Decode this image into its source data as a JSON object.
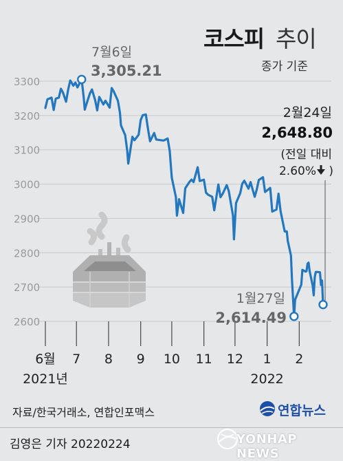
{
  "header": {
    "title": "코스피",
    "title_suffix": "추이",
    "subtitle": "종가 기준"
  },
  "footer": {
    "source": "자료/한국거래소, 연합인포맥스",
    "byline": "김영은 기자  20220224",
    "logo_yonhap": "연합뉴스",
    "logo_news": "YONHAP NEWS"
  },
  "colors": {
    "line": "#2377bf",
    "background": "#e6e7e8",
    "grid": "#c8c9cb",
    "tick_text": "#9a9a9a"
  },
  "icons": {
    "illustration": "incense-burner-icon",
    "logo": "yonhap-globe-icon"
  },
  "chart_data": {
    "type": "line",
    "title": "코스피 추이",
    "subtitle": "종가 기준",
    "x_range": [
      "2021-06-01",
      "2022-02-24"
    ],
    "ylim": [
      2600,
      3300
    ],
    "yticks": [
      2600,
      2700,
      2800,
      2900,
      3000,
      3100,
      3200,
      3300
    ],
    "grid": true,
    "xticks": [
      {
        "date": "2021-06-01",
        "label": "6월",
        "year": "2021년"
      },
      {
        "date": "2021-07-01",
        "label": "7"
      },
      {
        "date": "2021-08-01",
        "label": "8"
      },
      {
        "date": "2021-09-01",
        "label": "9"
      },
      {
        "date": "2021-10-01",
        "label": "10"
      },
      {
        "date": "2021-11-01",
        "label": "11"
      },
      {
        "date": "2021-12-01",
        "label": "12"
      },
      {
        "date": "2022-01-01",
        "label": "1",
        "year": "2022"
      },
      {
        "date": "2022-02-01",
        "label": "2"
      }
    ],
    "series": [
      {
        "points": [
          [
            "2021-06-01",
            3222
          ],
          [
            "2021-06-03",
            3247
          ],
          [
            "2021-06-07",
            3252
          ],
          [
            "2021-06-09",
            3216
          ],
          [
            "2021-06-11",
            3249
          ],
          [
            "2021-06-14",
            3252
          ],
          [
            "2021-06-16",
            3278
          ],
          [
            "2021-06-18",
            3267
          ],
          [
            "2021-06-21",
            3240
          ],
          [
            "2021-06-23",
            3276
          ],
          [
            "2021-06-25",
            3302
          ],
          [
            "2021-06-28",
            3287
          ],
          [
            "2021-06-30",
            3296
          ],
          [
            "2021-07-02",
            3282
          ],
          [
            "2021-07-06",
            3305.21
          ],
          [
            "2021-07-08",
            3252
          ],
          [
            "2021-07-09",
            3217
          ],
          [
            "2021-07-12",
            3246
          ],
          [
            "2021-07-14",
            3264
          ],
          [
            "2021-07-16",
            3276
          ],
          [
            "2021-07-19",
            3245
          ],
          [
            "2021-07-21",
            3215
          ],
          [
            "2021-07-23",
            3254
          ],
          [
            "2021-07-27",
            3232
          ],
          [
            "2021-07-29",
            3243
          ],
          [
            "2021-08-02",
            3223
          ],
          [
            "2021-08-04",
            3280
          ],
          [
            "2021-08-06",
            3270
          ],
          [
            "2021-08-10",
            3243
          ],
          [
            "2021-08-12",
            3208
          ],
          [
            "2021-08-13",
            3171
          ],
          [
            "2021-08-17",
            3143
          ],
          [
            "2021-08-19",
            3097
          ],
          [
            "2021-08-20",
            3060
          ],
          [
            "2021-08-24",
            3138
          ],
          [
            "2021-08-26",
            3128
          ],
          [
            "2021-08-30",
            3144
          ],
          [
            "2021-09-01",
            3187
          ],
          [
            "2021-09-03",
            3201
          ],
          [
            "2021-09-06",
            3203
          ],
          [
            "2021-09-08",
            3162
          ],
          [
            "2021-09-10",
            3125
          ],
          [
            "2021-09-14",
            3149
          ],
          [
            "2021-09-16",
            3130
          ],
          [
            "2021-09-23",
            3127
          ],
          [
            "2021-09-27",
            3133
          ],
          [
            "2021-09-29",
            3097
          ],
          [
            "2021-10-01",
            3019
          ],
          [
            "2021-10-05",
            2962
          ],
          [
            "2021-10-06",
            2908
          ],
          [
            "2021-10-08",
            2956
          ],
          [
            "2021-10-12",
            2916
          ],
          [
            "2021-10-14",
            2988
          ],
          [
            "2021-10-18",
            3006
          ],
          [
            "2021-10-20",
            3013
          ],
          [
            "2021-10-22",
            3006
          ],
          [
            "2021-10-26",
            3049
          ],
          [
            "2021-10-28",
            3009
          ],
          [
            "2021-11-01",
            3013
          ],
          [
            "2021-11-03",
            2975
          ],
          [
            "2021-11-05",
            2969
          ],
          [
            "2021-11-09",
            2963
          ],
          [
            "2021-11-11",
            2924
          ],
          [
            "2021-11-15",
            2999
          ],
          [
            "2021-11-17",
            2962
          ],
          [
            "2021-11-19",
            2971
          ],
          [
            "2021-11-23",
            2997
          ],
          [
            "2021-11-25",
            2980
          ],
          [
            "2021-11-29",
            2909
          ],
          [
            "2021-11-30",
            2839
          ],
          [
            "2021-12-02",
            2945
          ],
          [
            "2021-12-06",
            2973
          ],
          [
            "2021-12-08",
            3001
          ],
          [
            "2021-12-10",
            3010
          ],
          [
            "2021-12-14",
            2987
          ],
          [
            "2021-12-16",
            3006
          ],
          [
            "2021-12-20",
            2963
          ],
          [
            "2021-12-22",
            2984
          ],
          [
            "2021-12-24",
            3012
          ],
          [
            "2021-12-28",
            3020
          ],
          [
            "2021-12-30",
            2977
          ],
          [
            "2022-01-04",
            2989
          ],
          [
            "2022-01-06",
            2920
          ],
          [
            "2022-01-10",
            2926
          ],
          [
            "2022-01-12",
            2972
          ],
          [
            "2022-01-14",
            2921
          ],
          [
            "2022-01-18",
            2862
          ],
          [
            "2022-01-20",
            2862
          ],
          [
            "2022-01-21",
            2834
          ],
          [
            "2022-01-24",
            2792
          ],
          [
            "2022-01-25",
            2720
          ],
          [
            "2022-01-27",
            2614.49
          ],
          [
            "2022-01-28",
            2663
          ],
          [
            "2022-02-03",
            2707
          ],
          [
            "2022-02-04",
            2750
          ],
          [
            "2022-02-07",
            2745
          ],
          [
            "2022-02-08",
            2746
          ],
          [
            "2022-02-09",
            2768
          ],
          [
            "2022-02-10",
            2771
          ],
          [
            "2022-02-11",
            2747
          ],
          [
            "2022-02-14",
            2704
          ],
          [
            "2022-02-15",
            2676
          ],
          [
            "2022-02-16",
            2729
          ],
          [
            "2022-02-17",
            2744
          ],
          [
            "2022-02-18",
            2744
          ],
          [
            "2022-02-21",
            2743
          ],
          [
            "2022-02-22",
            2706
          ],
          [
            "2022-02-23",
            2719
          ],
          [
            "2022-02-24",
            2648.8
          ]
        ]
      }
    ],
    "annotations": [
      {
        "date": "2021-07-06",
        "label": "7월6일",
        "value": "3,305.21"
      },
      {
        "date": "2022-02-24",
        "label": "2월24일",
        "value": "2,648.80",
        "note": "(전일 대비",
        "change": "2.60%"
      },
      {
        "date": "2022-01-27",
        "label": "1월27일",
        "value": "2,614.49"
      }
    ]
  }
}
